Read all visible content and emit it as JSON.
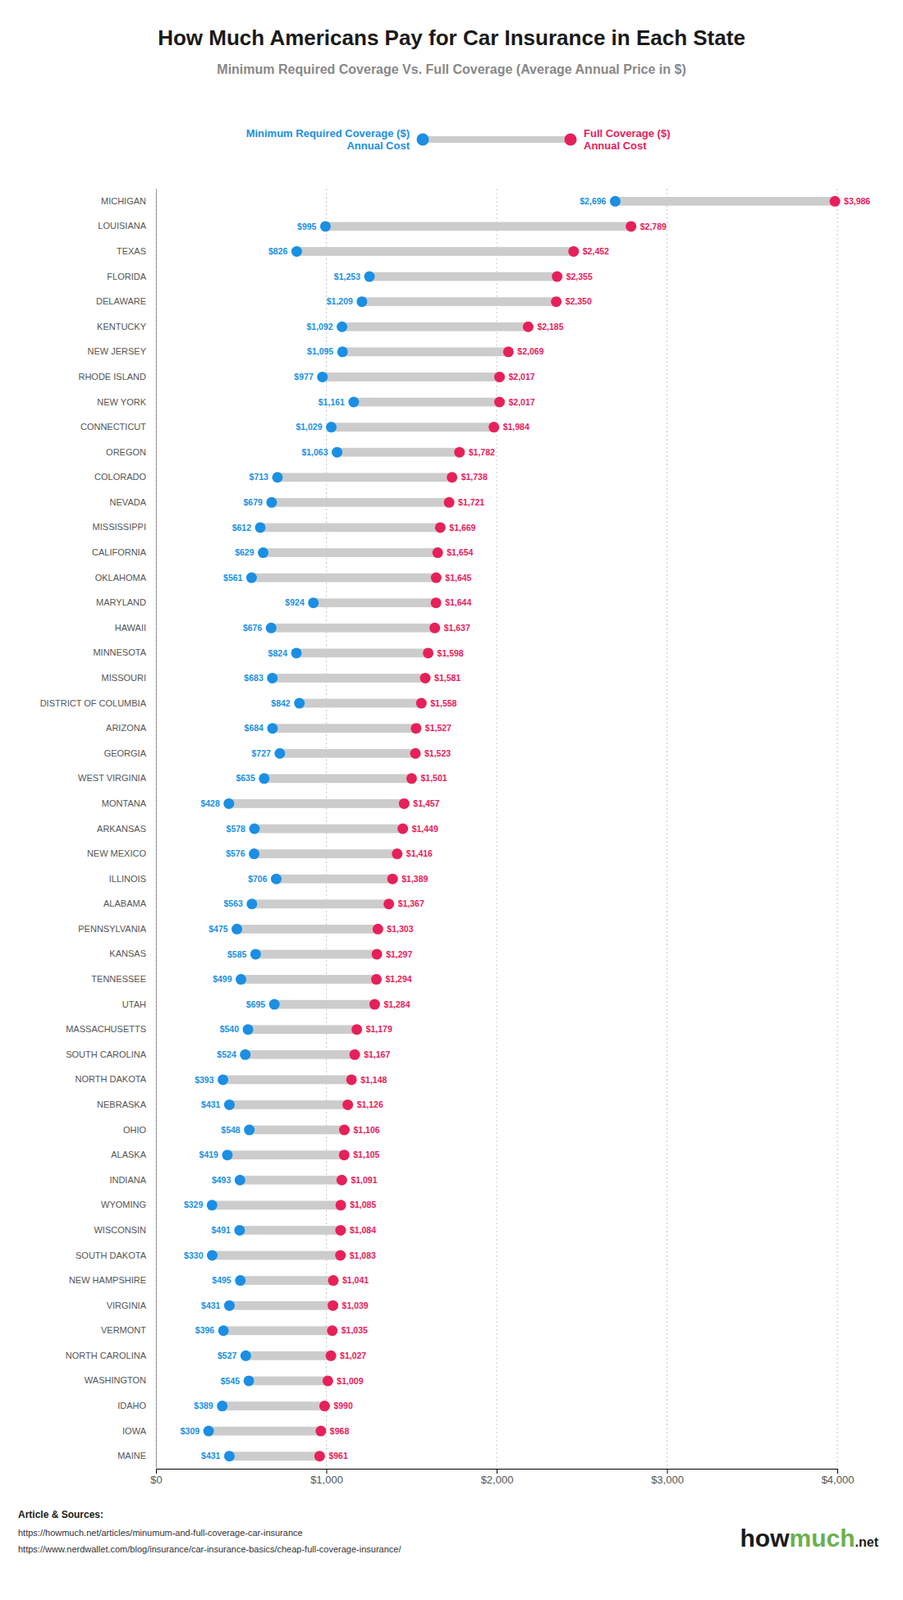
{
  "chart_data": {
    "type": "dumbbell",
    "title": "How Much Americans Pay for Car Insurance in Each State",
    "subtitle": "Minimum Required Coverage Vs. Full Coverage (Average Annual Price in $)",
    "orientation": "horizontal",
    "categories": [
      "MICHIGAN",
      "LOUISIANA",
      "TEXAS",
      "FLORIDA",
      "DELAWARE",
      "KENTUCKY",
      "NEW JERSEY",
      "RHODE ISLAND",
      "NEW YORK",
      "CONNECTICUT",
      "OREGON",
      "COLORADO",
      "NEVADA",
      "MISSISSIPPI",
      "CALIFORNIA",
      "OKLAHOMA",
      "MARYLAND",
      "HAWAII",
      "MINNESOTA",
      "MISSOURI",
      "DISTRICT OF COLUMBIA",
      "ARIZONA",
      "GEORGIA",
      "WEST VIRGINIA",
      "MONTANA",
      "ARKANSAS",
      "NEW MEXICO",
      "ILLINOIS",
      "ALABAMA",
      "PENNSYLVANIA",
      "KANSAS",
      "TENNESSEE",
      "UTAH",
      "MASSACHUSETTS",
      "SOUTH CAROLINA",
      "NORTH DAKOTA",
      "NEBRASKA",
      "OHIO",
      "ALASKA",
      "INDIANA",
      "WYOMING",
      "WISCONSIN",
      "SOUTH DAKOTA",
      "NEW HAMPSHIRE",
      "VIRGINIA",
      "VERMONT",
      "NORTH CAROLINA",
      "WASHINGTON",
      "IDAHO",
      "IOWA",
      "MAINE"
    ],
    "series": [
      {
        "name": "Minimum Required Coverage ($)\nAnnual Cost",
        "color": "#1a8fe3",
        "values": [
          2696,
          995,
          826,
          1253,
          1209,
          1092,
          1095,
          977,
          1161,
          1029,
          1063,
          713,
          679,
          612,
          629,
          561,
          924,
          676,
          824,
          683,
          842,
          684,
          727,
          635,
          428,
          578,
          576,
          706,
          563,
          475,
          585,
          499,
          695,
          540,
          524,
          393,
          431,
          548,
          419,
          493,
          329,
          491,
          330,
          495,
          431,
          396,
          527,
          545,
          389,
          309,
          431
        ],
        "value_labels": [
          "$2,696",
          "$995",
          "$826",
          "$1,253",
          "$1,209",
          "$1,092",
          "$1,095",
          "$977",
          "$1,161",
          "$1,029",
          "$1,063",
          "$713",
          "$679",
          "$612",
          "$629",
          "$561",
          "$924",
          "$676",
          "$824",
          "$683",
          "$842",
          "$684",
          "$727",
          "$635",
          "$428",
          "$578",
          "$576",
          "$706",
          "$563",
          "$475",
          "$585",
          "$499",
          "$695",
          "$540",
          "$524",
          "$393",
          "$431",
          "$548",
          "$419",
          "$493",
          "$329",
          "$491",
          "$330",
          "$495",
          "$431",
          "$396",
          "$527",
          "$545",
          "$389",
          "$309",
          "$431"
        ]
      },
      {
        "name": "Full Coverage ($)\nAnnual Cost",
        "color": "#e8205a",
        "values": [
          3986,
          2789,
          2452,
          2355,
          2350,
          2185,
          2069,
          2017,
          2017,
          1984,
          1782,
          1738,
          1721,
          1669,
          1654,
          1645,
          1644,
          1637,
          1598,
          1581,
          1558,
          1527,
          1523,
          1501,
          1457,
          1449,
          1416,
          1389,
          1367,
          1303,
          1297,
          1294,
          1284,
          1179,
          1167,
          1148,
          1126,
          1106,
          1105,
          1091,
          1085,
          1084,
          1083,
          1041,
          1039,
          1035,
          1027,
          1009,
          990,
          968,
          961
        ],
        "value_labels": [
          "$3,986",
          "$2,789",
          "$2,452",
          "$2,355",
          "$2,350",
          "$2,185",
          "$2,069",
          "$2,017",
          "$2,017",
          "$1,984",
          "$1,782",
          "$1,738",
          "$1,721",
          "$1,669",
          "$1,654",
          "$1,645",
          "$1,644",
          "$1,637",
          "$1,598",
          "$1,581",
          "$1,558",
          "$1,527",
          "$1,523",
          "$1,501",
          "$1,457",
          "$1,449",
          "$1,416",
          "$1,389",
          "$1,367",
          "$1,303",
          "$1,297",
          "$1,294",
          "$1,284",
          "$1,179",
          "$1,167",
          "$1,148",
          "$1,126",
          "$1,106",
          "$1,105",
          "$1,091",
          "$1,085",
          "$1,084",
          "$1,083",
          "$1,041",
          "$1,039",
          "$1,035",
          "$1,027",
          "$1,009",
          "$990",
          "$968",
          "$961"
        ]
      }
    ],
    "color": "#cccccc",
    "xlim": [
      0,
      4000
    ],
    "xticks": [
      {
        "value": 0,
        "label": "$0"
      },
      {
        "value": 1000,
        "label": "$1,000"
      },
      {
        "value": 2000,
        "label": "$2,000"
      },
      {
        "value": 3000,
        "label": "$3,000"
      },
      {
        "value": 4000,
        "label": "$4,000"
      }
    ],
    "grid": true,
    "legend": "top",
    "data_labels": true,
    "annotations": [
      "Article & Sources:",
      "https://howmuch.net/articles/minumum-and-full-coverage-car-insurance",
      "https://www.nerdwallet.com/blog/insurance/car-insurance-basics/cheap-full-coverage-insurance/",
      "how",
      "much",
      ".net"
    ]
  }
}
